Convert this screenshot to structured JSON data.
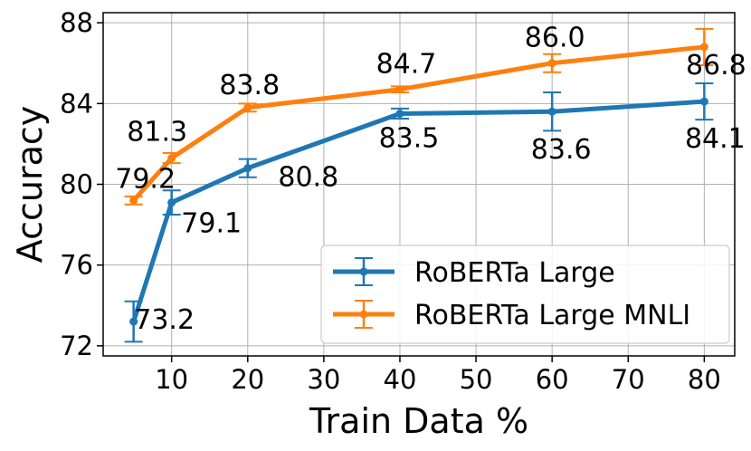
{
  "chart_data": {
    "type": "line",
    "xlabel": "Train Data %",
    "ylabel": "Accuracy",
    "xlim": [
      1,
      84
    ],
    "ylim": [
      71.5,
      88.5
    ],
    "xticks": [
      10,
      20,
      30,
      40,
      50,
      60,
      70,
      80
    ],
    "yticks": [
      72,
      76,
      80,
      84,
      88
    ],
    "grid": true,
    "legend_position": "bottom-right",
    "series": [
      {
        "name": "RoBERTa Large",
        "color": "#1f77b4",
        "x": [
          5,
          10,
          20,
          40,
          60,
          80
        ],
        "y": [
          73.2,
          79.1,
          80.8,
          83.5,
          83.6,
          84.1
        ],
        "err": [
          1.0,
          0.6,
          0.45,
          0.25,
          0.95,
          0.9
        ],
        "labels": [
          "73.2",
          "79.1",
          "80.8",
          "83.5",
          "83.6",
          "84.1"
        ]
      },
      {
        "name": "RoBERTa Large MNLI",
        "color": "#ff7f0e",
        "x": [
          5,
          10,
          20,
          40,
          60,
          80
        ],
        "y": [
          79.2,
          81.3,
          83.8,
          84.7,
          86.0,
          86.8
        ],
        "err": [
          0.2,
          0.25,
          0.2,
          0.15,
          0.45,
          0.9
        ],
        "labels": [
          "79.2",
          "81.3",
          "83.8",
          "84.7",
          "86.0",
          "86.8"
        ]
      }
    ]
  }
}
